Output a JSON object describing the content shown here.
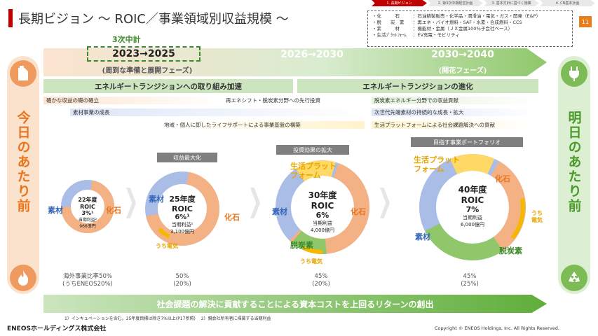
{
  "header": {
    "title": "長期ビジョン ～ ROIC／事業領域別収益規模 ～",
    "page_number": "11",
    "tabs": [
      "1. 長期ビジョン",
      "2. 第3次中期経営計画",
      "3. 基本方針に基づく施策",
      "4. CN基本計画"
    ],
    "active_tab_index": 0
  },
  "legend": {
    "rows": [
      {
        "k": "・化　　　石",
        "v": "：石油精製販売・化学品・潤滑油・電気・ガス・開発（E&P）"
      },
      {
        "k": "・脱　　炭　素",
        "v": "：再エネ・バイオ燃料・SAF・水素・合成燃料・CCS"
      },
      {
        "k": "・素　　　材",
        "v": "：機能材・金属（ＪＸ金属100％子会社ベース）"
      },
      {
        "k": "・生活ﾌﾟﾗｯﾄﾌｫｰﾑ",
        "v": "：EV充電・モビリティ"
      }
    ]
  },
  "side": {
    "left_text": "今日のあたり前",
    "right_text": "明日のあたり前"
  },
  "phases": {
    "p1_label": "3次中計",
    "p1": "2023→2025",
    "p1_sub": "(周到な準備と展開フェーズ)",
    "p2": "2026→2030",
    "p3": "2030→2040",
    "p3_sub": "(開花フェーズ)"
  },
  "bars": {
    "a": "エネルギートランジションへの取り組み加速",
    "b": "エネルギートランジションの進化"
  },
  "initiatives": {
    "i1": "確かな収益の礎の確立",
    "i2": "再エネシフト・脱炭素分野への先行投資",
    "i3": "脱炭素エネルギー分野での収益貢献",
    "i4": "素材事業の成長",
    "i5": "次世代先端素材の持続的な成長・拡大",
    "i6": "地域・個人に即したライフサポートによる事業基盤の構築",
    "i7": "生活プラットフォームによる社会課題解決への貢献"
  },
  "sections": {
    "s2": "収益最大化",
    "s3": "投資効果の拡大",
    "s4": "目指す事業ポートフォリオ"
  },
  "donuts": [
    {
      "year": "22年度",
      "roic": "ROIC",
      "pct": "3%¹",
      "profit_label": "当期利益²",
      "profit": "966億円",
      "labels": {
        "material": "素材",
        "fossil": "化石"
      }
    },
    {
      "year": "25年度",
      "roic": "ROIC",
      "pct": "6%¹",
      "profit_label": "当期利益²",
      "profit": "3,100億円",
      "labels": {
        "material": "素材",
        "fossil": "化石",
        "power": "うち電気"
      }
    },
    {
      "year": "30年度",
      "roic": "ROIC",
      "pct": "6%",
      "profit_label": "当期利益",
      "profit": "4,000億円",
      "labels": {
        "material": "素材",
        "fossil": "化石",
        "platform": "生活プラット\nフォーム",
        "decarb": "脱炭素",
        "power": "うち電気"
      }
    },
    {
      "year": "40年度",
      "roic": "ROIC",
      "pct": "7%",
      "profit_label": "当期利益",
      "profit": "6,000億円",
      "labels": {
        "material": "素材",
        "fossil": "化石",
        "platform": "生活プラット\nフォーム",
        "decarb": "脱炭素",
        "power": "うち\n電気"
      }
    }
  ],
  "ratios": {
    "r1a": "海外事業比率50%",
    "r1b": "(うちENEOS20%)",
    "r2a": "50%",
    "r2b": "(20%)",
    "r3a": "45%",
    "r3b": "(20%)",
    "r4a": "45%",
    "r4b": "(25%)"
  },
  "bottom": {
    "arrow_text": "社会課題の解決に貢献することによる資本コストを上回るリターンの創出",
    "footnote": "1）インキュベーションを含む。25年度目標は除き7%以上(P17参照)　 2）親会社所有者に帰属する当期利益",
    "logo": "ENEOSホールディングス株式会社",
    "copyright": "Copyright © ENEOS Holdings, Inc. All Rights Reserved."
  },
  "colors": {
    "accent_red": "#c00000",
    "fossil": "#f4b183",
    "material": "#a9bde6",
    "decarb": "#8fc76a",
    "platform": "#ffd966",
    "power": "#f5b800"
  },
  "icons": {
    "left_top": "fuel-can-icon",
    "left_bottom": "flame-icon",
    "right_top": "plug-icon",
    "right_bottom": "recycle-icon"
  }
}
